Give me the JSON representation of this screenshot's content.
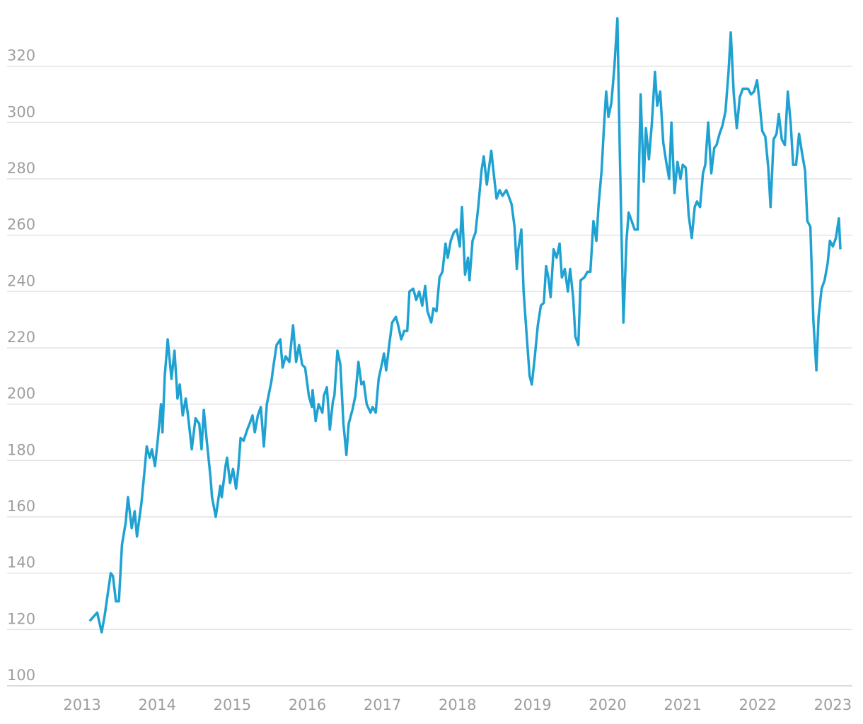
{
  "chart_data": {
    "type": "line",
    "color": "#1fa2d2",
    "grid": true,
    "xlim": [
      2012,
      2023.26
    ],
    "xticks": [
      2013,
      2014,
      2015,
      2016,
      2017,
      2018,
      2019,
      2020,
      2021,
      2022,
      2023
    ],
    "ylim": [
      100,
      341
    ],
    "yticks": [
      100,
      120,
      140,
      160,
      180,
      200,
      220,
      240,
      260,
      280,
      300,
      320
    ],
    "x": [
      2013.1,
      2013.2,
      2013.26,
      2013.3,
      2013.38,
      2013.41,
      2013.45,
      2013.49,
      2013.53,
      2013.58,
      2013.61,
      2013.66,
      2013.7,
      2013.73,
      2013.79,
      2013.83,
      2013.86,
      2013.9,
      2013.93,
      2013.97,
      2014.01,
      2014.05,
      2014.07,
      2014.1,
      2014.14,
      2014.19,
      2014.23,
      2014.27,
      2014.3,
      2014.34,
      2014.38,
      2014.41,
      2014.46,
      2014.51,
      2014.56,
      2014.59,
      2014.62,
      2014.66,
      2014.71,
      2014.73,
      2014.78,
      2014.84,
      2014.86,
      2014.91,
      2014.93,
      2014.97,
      2015.01,
      2015.05,
      2015.08,
      2015.11,
      2015.15,
      2015.2,
      2015.23,
      2015.27,
      2015.3,
      2015.34,
      2015.38,
      2015.42,
      2015.46,
      2015.52,
      2015.55,
      2015.59,
      2015.64,
      2015.67,
      2015.71,
      2015.76,
      2015.81,
      2015.85,
      2015.89,
      2015.93,
      2015.97,
      2016.02,
      2016.06,
      2016.07,
      2016.11,
      2016.15,
      2016.2,
      2016.22,
      2016.26,
      2016.3,
      2016.34,
      2016.36,
      2016.4,
      2016.44,
      2016.48,
      2016.52,
      2016.55,
      2016.6,
      2016.64,
      2016.68,
      2016.72,
      2016.75,
      2016.79,
      2016.84,
      2016.87,
      2016.91,
      2016.95,
      2016.99,
      2017.02,
      2017.05,
      2017.09,
      2017.13,
      2017.18,
      2017.21,
      2017.25,
      2017.29,
      2017.33,
      2017.36,
      2017.41,
      2017.45,
      2017.49,
      2017.53,
      2017.57,
      2017.6,
      2017.65,
      2017.68,
      2017.72,
      2017.76,
      2017.8,
      2017.84,
      2017.87,
      2017.91,
      2017.95,
      2017.99,
      2018.03,
      2018.06,
      2018.1,
      2018.14,
      2018.16,
      2018.2,
      2018.24,
      2018.28,
      2018.32,
      2018.35,
      2018.39,
      2018.45,
      2018.49,
      2018.52,
      2018.56,
      2018.6,
      2018.65,
      2018.68,
      2018.72,
      2018.76,
      2018.79,
      2018.81,
      2018.85,
      2018.88,
      2018.92,
      2018.96,
      2018.99,
      2019.03,
      2019.07,
      2019.11,
      2019.15,
      2019.18,
      2019.21,
      2019.24,
      2019.28,
      2019.32,
      2019.36,
      2019.39,
      2019.43,
      2019.47,
      2019.5,
      2019.54,
      2019.57,
      2019.61,
      2019.64,
      2019.69,
      2019.73,
      2019.77,
      2019.81,
      2019.85,
      2019.88,
      2019.92,
      2019.95,
      2019.98,
      2020.01,
      2020.05,
      2020.09,
      2020.13,
      2020.16,
      2020.21,
      2020.25,
      2020.28,
      2020.32,
      2020.36,
      2020.4,
      2020.44,
      2020.48,
      2020.51,
      2020.55,
      2020.59,
      2020.63,
      2020.66,
      2020.7,
      2020.74,
      2020.78,
      2020.82,
      2020.85,
      2020.89,
      2020.93,
      2020.97,
      2021.0,
      2021.04,
      2021.08,
      2021.12,
      2021.16,
      2021.19,
      2021.23,
      2021.27,
      2021.3,
      2021.34,
      2021.38,
      2021.42,
      2021.45,
      2021.49,
      2021.53,
      2021.57,
      2021.61,
      2021.64,
      2021.68,
      2021.72,
      2021.76,
      2021.8,
      2021.84,
      2021.87,
      2021.91,
      2021.95,
      2021.99,
      2022.02,
      2022.06,
      2022.1,
      2022.14,
      2022.17,
      2022.21,
      2022.25,
      2022.28,
      2022.32,
      2022.36,
      2022.4,
      2022.44,
      2022.47,
      2022.51,
      2022.55,
      2022.59,
      2022.63,
      2022.66,
      2022.7,
      2022.74,
      2022.78,
      2022.81,
      2022.85,
      2022.89,
      2022.93,
      2022.96,
      2023.0,
      2023.04,
      2023.08,
      2023.1
    ],
    "values": [
      123,
      126,
      119,
      125,
      140,
      139,
      130,
      130,
      150,
      158,
      167,
      156,
      162,
      153,
      165,
      176,
      185,
      181,
      184,
      178,
      188,
      200,
      190,
      210,
      223,
      209,
      219,
      202,
      207,
      196,
      202,
      196,
      184,
      195,
      193,
      184,
      198,
      187,
      174,
      167,
      160,
      171,
      167,
      178,
      181,
      172,
      177,
      170,
      177,
      188,
      187,
      191,
      193,
      196,
      190,
      196,
      199,
      185,
      200,
      208,
      214,
      221,
      223,
      213,
      217,
      215,
      228,
      215,
      221,
      214,
      213,
      203,
      199,
      205,
      194,
      200,
      197,
      203,
      206,
      191,
      201,
      203,
      219,
      214,
      193,
      182,
      193,
      198,
      203,
      215,
      207,
      208,
      200,
      197,
      199,
      197,
      209,
      214,
      218,
      212,
      221,
      229,
      231,
      228,
      223,
      226,
      226,
      240,
      241,
      237,
      240,
      235,
      242,
      233,
      229,
      234,
      233,
      245,
      247,
      257,
      252,
      258,
      261,
      262,
      256,
      270,
      246,
      252,
      244,
      258,
      261,
      271,
      283,
      288,
      278,
      290,
      280,
      273,
      276,
      274,
      276,
      274,
      271,
      263,
      248,
      255,
      262,
      240,
      225,
      210,
      207,
      217,
      228,
      235,
      236,
      249,
      245,
      238,
      255,
      252,
      257,
      245,
      248,
      240,
      248,
      238,
      224,
      221,
      244,
      245,
      247,
      247,
      265,
      258,
      271,
      283,
      298,
      311,
      302,
      307,
      320,
      337,
      292,
      229,
      258,
      268,
      265,
      262,
      262,
      310,
      279,
      298,
      287,
      300,
      318,
      306,
      311,
      293,
      286,
      280,
      300,
      275,
      286,
      280,
      285,
      284,
      267,
      259,
      270,
      272,
      270,
      282,
      285,
      300,
      282,
      291,
      292,
      296,
      299,
      304,
      318,
      332,
      310,
      298,
      309,
      312,
      312,
      312,
      310,
      311,
      315,
      308,
      297,
      295,
      284,
      270,
      294,
      296,
      303,
      294,
      292,
      311,
      299,
      285,
      285,
      296,
      289,
      283,
      265,
      263,
      230,
      212,
      231,
      241,
      244,
      250,
      258,
      256,
      259,
      266,
      255
    ]
  }
}
